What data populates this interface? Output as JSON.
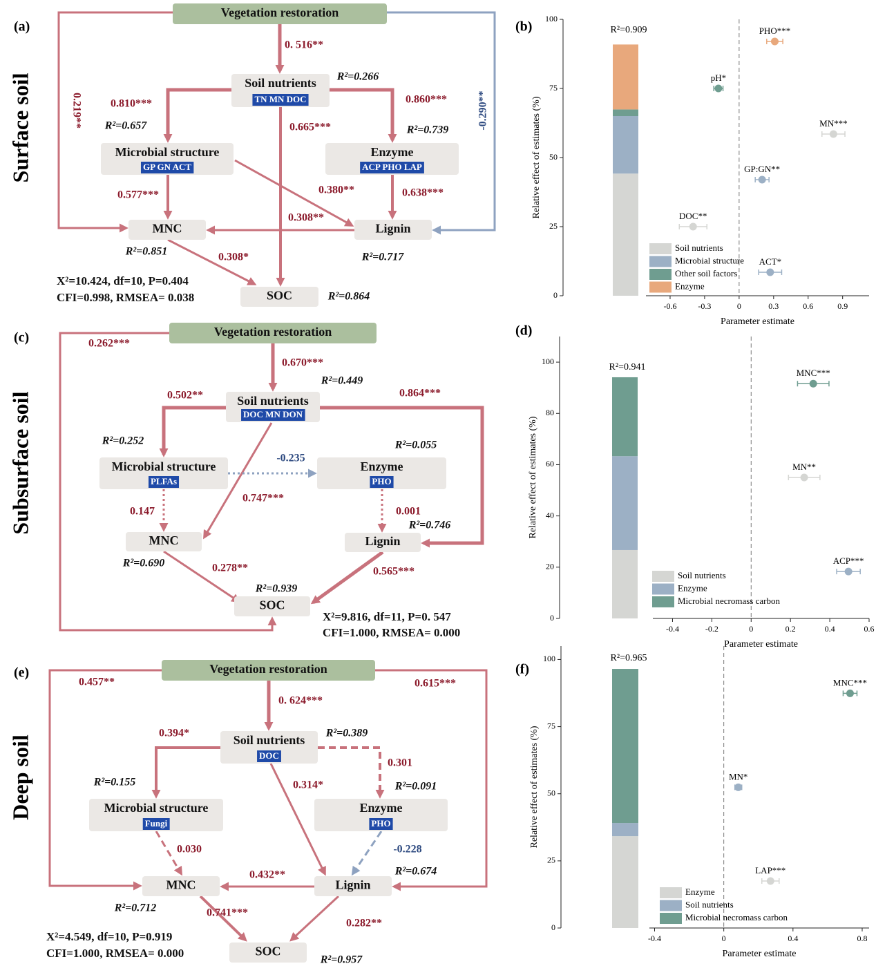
{
  "diagrams": [
    {
      "panel": "(a)",
      "row_label": "Surface soil",
      "nodes": [
        {
          "label": "Vegetation restoration"
        },
        {
          "label": "Soil nutrients",
          "sublabel": "TN MN DOC"
        },
        {
          "label": "Microbial structure",
          "sublabel": "GP GN ACT"
        },
        {
          "label": "Enzyme",
          "sublabel": "ACP PHO LAP"
        },
        {
          "label": "MNC"
        },
        {
          "label": "Lignin"
        },
        {
          "label": "SOC"
        }
      ],
      "coefficients": [
        "0. 516**",
        "0.810***",
        "0.860***",
        "0.665***",
        "0.577***",
        "0.380**",
        "0.638***",
        "0.308**",
        "0.308*",
        "0.219**",
        "-0.290**"
      ],
      "r2": [
        "R²=0.266",
        "R²=0.657",
        "R²=0.739",
        "R²=0.851",
        "R²=0.717",
        "R²=0.864"
      ],
      "fit": [
        "X²=10.424, df=10, P=0.404",
        "CFI=0.998, RMSEA= 0.038"
      ]
    },
    {
      "panel": "(c)",
      "row_label": "Subsurface soil",
      "nodes": [
        {
          "label": "Vegetation restoration"
        },
        {
          "label": "Soil nutrients",
          "sublabel": "DOC MN DON"
        },
        {
          "label": "Microbial structure",
          "sublabel": "PLFAs"
        },
        {
          "label": "Enzyme",
          "sublabel": "PHO"
        },
        {
          "label": "MNC"
        },
        {
          "label": "Lignin"
        },
        {
          "label": "SOC"
        }
      ],
      "coefficients": [
        "0.670***",
        "0.502**",
        "0.864***",
        "0.747***",
        "-0.235",
        "0.147",
        "0.001",
        "0.278**",
        "0.565***",
        "0.262***"
      ],
      "r2": [
        "R²=0.449",
        "R²=0.252",
        "R²=0.055",
        "R²=0.690",
        "R²=0.746",
        "R²=0.939"
      ],
      "fit": [
        "X²=9.816, df=11, P=0. 547",
        "CFI=1.000, RMSEA= 0.000"
      ]
    },
    {
      "panel": "(e)",
      "row_label": "Deep soil",
      "nodes": [
        {
          "label": "Vegetation restoration"
        },
        {
          "label": "Soil nutrients",
          "sublabel": "DOC"
        },
        {
          "label": "Microbial structure",
          "sublabel": "Fungi"
        },
        {
          "label": "Enzyme",
          "sublabel": "PHO"
        },
        {
          "label": "MNC"
        },
        {
          "label": "Lignin"
        },
        {
          "label": "SOC"
        }
      ],
      "coefficients": [
        "0. 624***",
        "0.394*",
        "0.301",
        "0.314*",
        "0.030",
        "-0.228",
        "0.432**",
        "0.741***",
        "0.282**",
        "0.457**",
        "0.615***"
      ],
      "r2": [
        "R²=0.389",
        "R²=0.155",
        "R²=0.091",
        "R²=0.674",
        "R²=0.712",
        "R²=0.957"
      ],
      "fit": [
        "X²=4.549, df=10, P=0.919",
        "CFI=1.000, RMSEA= 0.000"
      ]
    }
  ],
  "chart_data": [
    {
      "type": "effects",
      "panel": "(b)",
      "r2_label": "R²=0.909",
      "ylabel": "Relative effect of estimates (%)",
      "xlabel": "Parameter estimate",
      "ylim": [
        0,
        100
      ],
      "yticks": [
        0,
        25,
        50,
        75,
        100
      ],
      "xlim": [
        -0.81,
        1.13
      ],
      "xticks": [
        -0.6,
        -0.3,
        0,
        0.3,
        0.6,
        0.9
      ],
      "legend": "lower left",
      "series": [
        {
          "name": "Soil nutrients",
          "color": "#d5d6d3",
          "values": [
            44.2
          ]
        },
        {
          "name": "Microbial structure",
          "color": "#9cb0c5",
          "values": [
            20.8
          ]
        },
        {
          "name": "Other soil factors",
          "color": "#6f9d90",
          "values": [
            2.4
          ]
        },
        {
          "name": "Enzyme",
          "color": "#e8a87c",
          "values": [
            23.5
          ]
        }
      ],
      "points": {
        "labels": [
          "PHO***",
          "pH*",
          "MN***",
          "GP:GN**",
          "DOC**",
          "ACT*"
        ],
        "x": [
          0.31,
          -0.18,
          0.82,
          0.2,
          -0.4,
          0.27
        ],
        "y": [
          92,
          75,
          58.5,
          42,
          25,
          8.5
        ],
        "xerr": [
          0.07,
          0.04,
          0.1,
          0.06,
          0.12,
          0.1
        ],
        "colors": [
          "#e8a87c",
          "#6f9d90",
          "#d5d6d3",
          "#9cb0c5",
          "#d5d6d3",
          "#9cb0c5"
        ]
      }
    },
    {
      "type": "effects",
      "panel": "(d)",
      "r2_label": "R²=0.941",
      "ylabel": "Relative effect of estimates (%)",
      "xlabel": "Parameter estimate",
      "ylim": [
        0,
        110
      ],
      "yticks": [
        0,
        20,
        40,
        60,
        80,
        100
      ],
      "xlim": [
        -0.5,
        0.6
      ],
      "xticks": [
        -0.4,
        -0.2,
        0,
        0.2,
        0.4,
        0.6
      ],
      "legend": "lower left",
      "series": [
        {
          "name": "Soil nutrients",
          "color": "#d5d6d3",
          "values": [
            26.7
          ]
        },
        {
          "name": "Enzyme",
          "color": "#9cb0c5",
          "values": [
            36.6
          ]
        },
        {
          "name": "Microbial necromass carbon",
          "color": "#6f9d90",
          "values": [
            30.8
          ]
        }
      ],
      "points": {
        "labels": [
          "MNC***",
          "MN**",
          "ACP***"
        ],
        "x": [
          0.316,
          0.27,
          0.495
        ],
        "y": [
          91.6,
          55,
          18.3
        ],
        "xerr": [
          0.08,
          0.08,
          0.06
        ],
        "colors": [
          "#6f9d90",
          "#d5d6d3",
          "#9cb0c5"
        ]
      }
    },
    {
      "type": "effects",
      "panel": "(f)",
      "r2_label": "R²=0.965",
      "ylabel": "Relative effect of estimates (%)",
      "xlabel": "Parameter estimate",
      "ylim": [
        0,
        105
      ],
      "yticks": [
        0,
        25,
        50,
        75,
        100
      ],
      "xlim": [
        -0.43,
        0.84
      ],
      "xticks": [
        -0.4,
        0,
        0.4,
        0.8
      ],
      "legend": "lower left",
      "series": [
        {
          "name": "Enzyme",
          "color": "#d5d6d3",
          "values": [
            34.2
          ]
        },
        {
          "name": "Soil nutrients",
          "color": "#9cb0c5",
          "values": [
            4.9
          ]
        },
        {
          "name": "Microbial necromass carbon",
          "color": "#6f9d90",
          "values": [
            57.4
          ]
        }
      ],
      "points": {
        "labels": [
          "MNC***",
          "MN*",
          "LAP***"
        ],
        "x": [
          0.73,
          0.084,
          0.27
        ],
        "y": [
          87.4,
          52.4,
          17.5
        ],
        "xerr": [
          0.04,
          0.02,
          0.05
        ],
        "colors": [
          "#6f9d90",
          "#9cb0c5",
          "#d5d6d3"
        ]
      }
    }
  ]
}
